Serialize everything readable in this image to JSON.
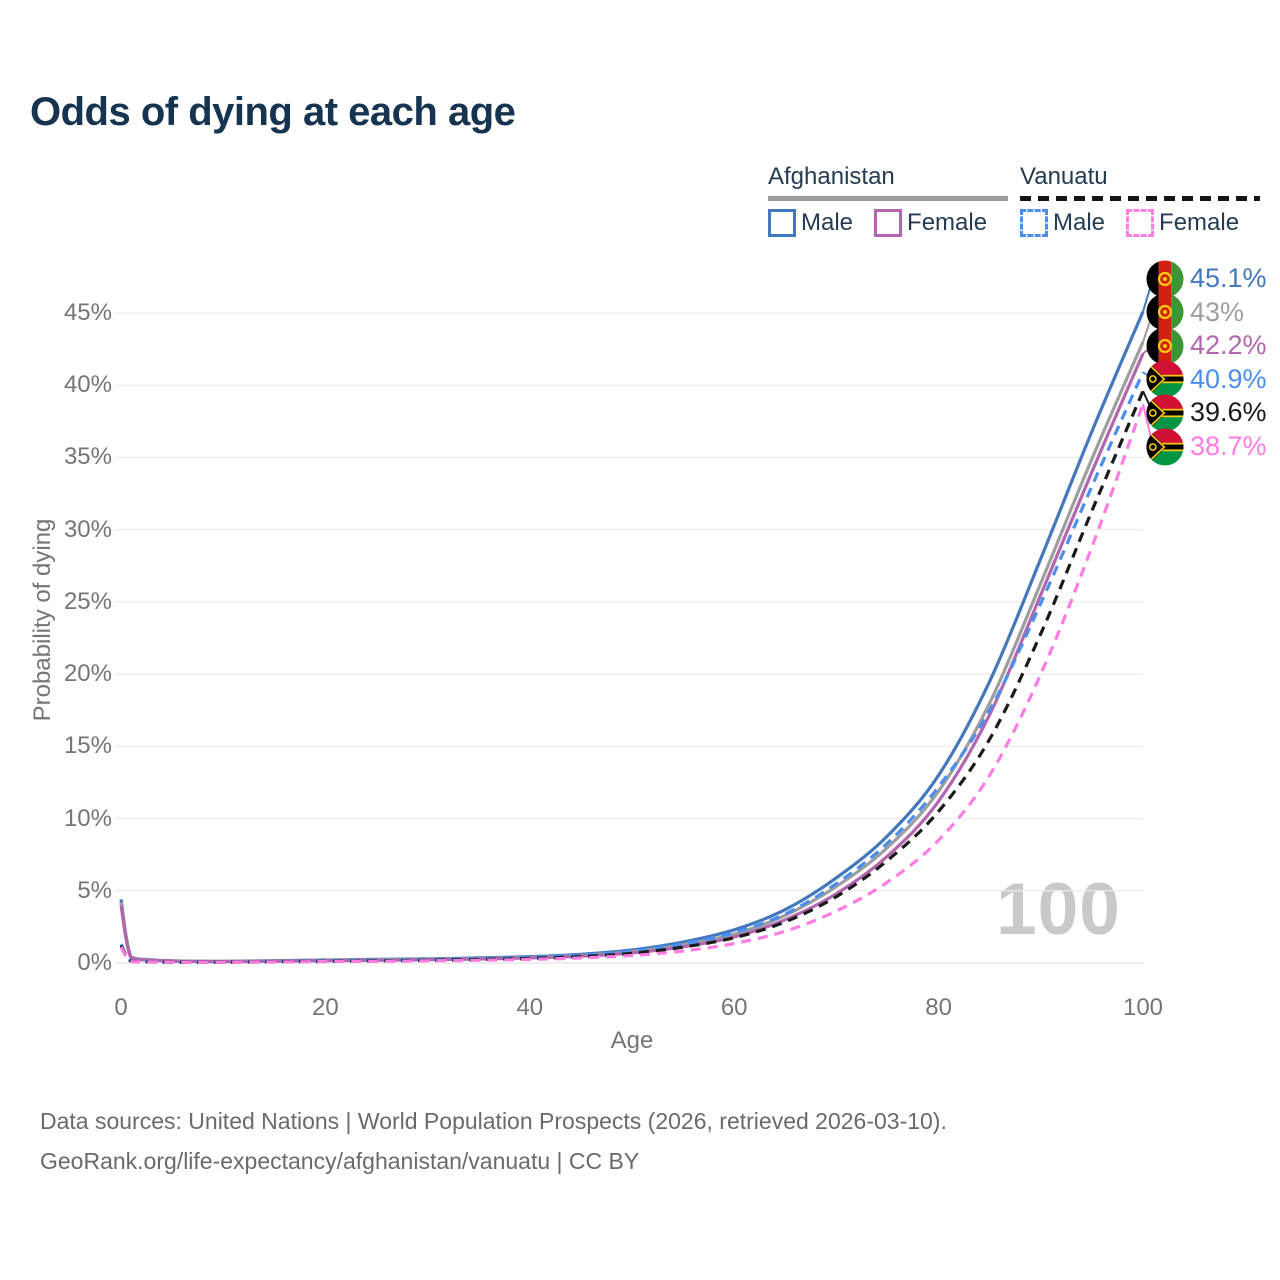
{
  "title": "Odds of dying at each age",
  "watermark_age": "100",
  "legend": {
    "groups": [
      {
        "name": "Afghanistan",
        "line_style": "solid",
        "line_color": "#9e9e9e",
        "items": [
          {
            "label": "Male",
            "color": "#4478bc",
            "style": "solid"
          },
          {
            "label": "Female",
            "color": "#b365af",
            "style": "solid"
          }
        ]
      },
      {
        "name": "Vanuatu",
        "line_style": "dashed",
        "line_color": "#151515",
        "items": [
          {
            "label": "Male",
            "color": "#4a8ff0",
            "style": "dashed"
          },
          {
            "label": "Female",
            "color": "#ff7ce2",
            "style": "dashed"
          }
        ]
      }
    ]
  },
  "chart_data": {
    "type": "line",
    "title": "Odds of dying at each age",
    "xlabel": "Age",
    "ylabel": "Probability of dying",
    "xlim": [
      0,
      100
    ],
    "ylim": [
      0,
      47
    ],
    "x_ticks": [
      0,
      20,
      40,
      60,
      80,
      100
    ],
    "y_ticks_percent": [
      0,
      5,
      10,
      15,
      20,
      25,
      30,
      35,
      40,
      45
    ],
    "grid": "horizontal",
    "legend_position": "top-right",
    "ages": [
      0,
      1,
      3,
      5,
      10,
      15,
      20,
      25,
      30,
      35,
      40,
      45,
      50,
      55,
      60,
      65,
      70,
      75,
      80,
      85,
      90,
      95,
      100
    ],
    "series": [
      {
        "name": "Afghanistan Male",
        "country": "Afghanistan",
        "sex": "Male",
        "style": "solid",
        "color": "#4478bc",
        "end_value_label": "45.1%",
        "values": [
          4.4,
          0.4,
          0.22,
          0.15,
          0.12,
          0.16,
          0.21,
          0.25,
          0.29,
          0.35,
          0.44,
          0.6,
          0.9,
          1.45,
          2.3,
          3.7,
          5.9,
          8.8,
          13.0,
          19.5,
          28.0,
          36.8,
          45.1
        ]
      },
      {
        "name": "Afghanistan Both sexes",
        "country": "Afghanistan",
        "sex": "Both",
        "style": "solid",
        "color": "#9e9e9e",
        "end_value_label": "43%",
        "values": [
          4.2,
          0.37,
          0.21,
          0.14,
          0.11,
          0.14,
          0.18,
          0.22,
          0.26,
          0.31,
          0.39,
          0.53,
          0.79,
          1.27,
          2.0,
          3.3,
          5.3,
          8.0,
          11.9,
          18.0,
          26.3,
          34.9,
          43.0
        ]
      },
      {
        "name": "Afghanistan Female",
        "country": "Afghanistan",
        "sex": "Female",
        "style": "solid",
        "color": "#b365af",
        "end_value_label": "42.2%",
        "values": [
          4.0,
          0.34,
          0.19,
          0.13,
          0.1,
          0.13,
          0.16,
          0.19,
          0.23,
          0.28,
          0.35,
          0.47,
          0.7,
          1.12,
          1.8,
          3.0,
          4.8,
          7.4,
          11.2,
          17.2,
          25.5,
          34.0,
          42.2
        ]
      },
      {
        "name": "Vanuatu Male",
        "country": "Vanuatu",
        "sex": "Male",
        "style": "dashed",
        "color": "#4a8ff0",
        "end_value_label": "40.9%",
        "values": [
          1.3,
          0.12,
          0.08,
          0.06,
          0.06,
          0.1,
          0.15,
          0.19,
          0.23,
          0.29,
          0.38,
          0.54,
          0.82,
          1.33,
          2.1,
          3.4,
          5.5,
          8.3,
          12.2,
          17.5,
          24.9,
          33.0,
          40.9
        ]
      },
      {
        "name": "Vanuatu Both sexes",
        "country": "Vanuatu",
        "sex": "Both",
        "style": "dashed",
        "color": "#1a1a1a",
        "end_value_label": "39.6%",
        "values": [
          1.2,
          0.11,
          0.075,
          0.055,
          0.055,
          0.085,
          0.12,
          0.15,
          0.19,
          0.24,
          0.31,
          0.44,
          0.67,
          1.1,
          1.75,
          2.85,
          4.6,
          7.1,
          10.5,
          15.5,
          22.8,
          31.3,
          39.6
        ]
      },
      {
        "name": "Vanuatu Female",
        "country": "Vanuatu",
        "sex": "Female",
        "style": "dashed",
        "color": "#ff7ce2",
        "end_value_label": "38.7%",
        "values": [
          1.1,
          0.1,
          0.07,
          0.05,
          0.05,
          0.07,
          0.1,
          0.12,
          0.15,
          0.19,
          0.25,
          0.35,
          0.52,
          0.83,
          1.35,
          2.2,
          3.6,
          5.6,
          8.5,
          13.0,
          20.0,
          28.8,
          38.7
        ]
      }
    ]
  },
  "footer": {
    "line1": "Data sources: United Nations | World Population Prospects (2026, retrieved 2026-03-10).",
    "line2": "GeoRank.org/life-expectancy/afghanistan/vanuatu | CC BY"
  }
}
